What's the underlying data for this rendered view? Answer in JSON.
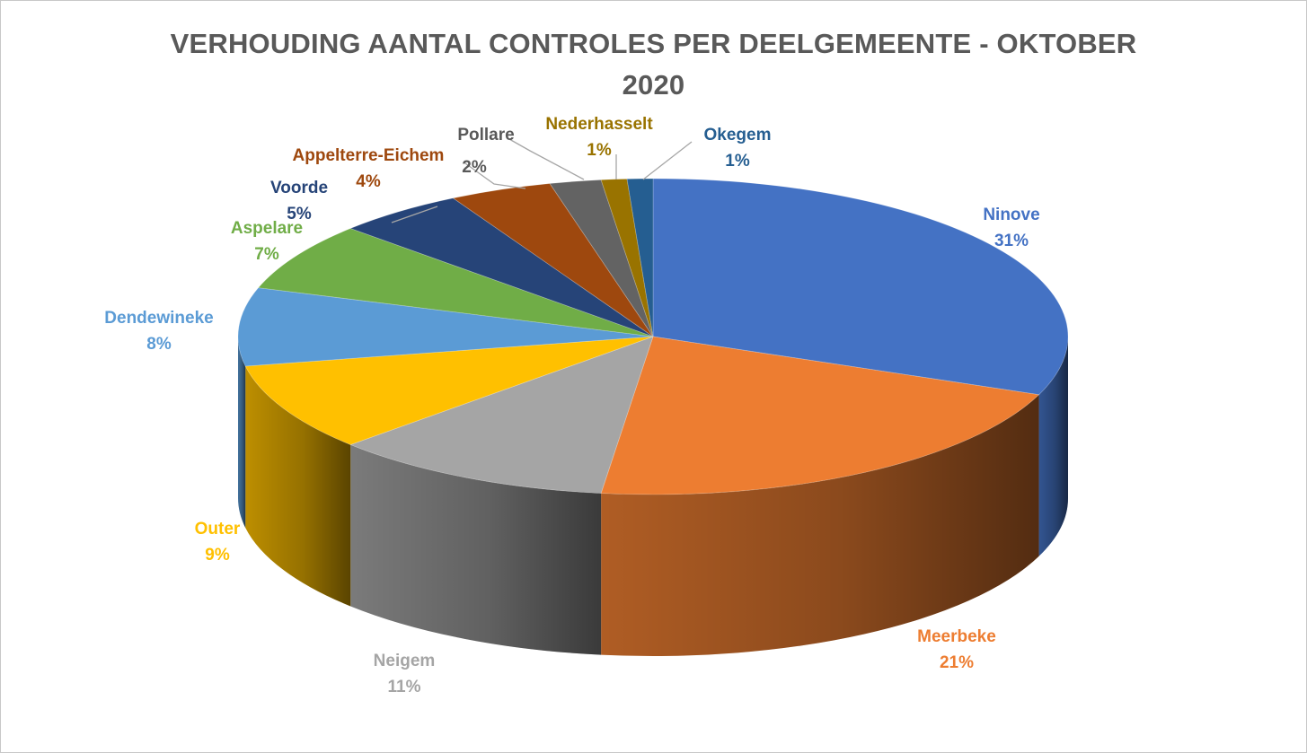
{
  "chart_data": {
    "type": "pie",
    "title_line1": "VERHOUDING AANTAL CONTROLES PER DEELGEMEENTE - OKTOBER",
    "title_line2": "2020",
    "slices": [
      {
        "name": "Ninove",
        "value": 31,
        "label": "31%",
        "color": "#4472C4"
      },
      {
        "name": "Meerbeke",
        "value": 21,
        "label": "21%",
        "color": "#ED7D31"
      },
      {
        "name": "Neigem",
        "value": 11,
        "label": "11%",
        "color": "#A5A5A5"
      },
      {
        "name": "Outer",
        "value": 9,
        "label": "9%",
        "color": "#FFC000"
      },
      {
        "name": "Dendewineke",
        "value": 8,
        "label": "8%",
        "color": "#5B9BD5"
      },
      {
        "name": "Aspelare",
        "value": 7,
        "label": "7%",
        "color": "#70AD47"
      },
      {
        "name": "Voorde",
        "value": 5,
        "label": "5%",
        "color": "#264478"
      },
      {
        "name": "Appelterre-Eichem",
        "value": 4,
        "label": "4%",
        "color": "#9E480E"
      },
      {
        "name": "Pollare",
        "value": 2,
        "label": "2%",
        "color": "#636363"
      },
      {
        "name": "Nederhasselt",
        "value": 1,
        "label": "1%",
        "color": "#997300"
      },
      {
        "name": "Okegem",
        "value": 1,
        "label": "1%",
        "color": "#255E91"
      }
    ]
  }
}
